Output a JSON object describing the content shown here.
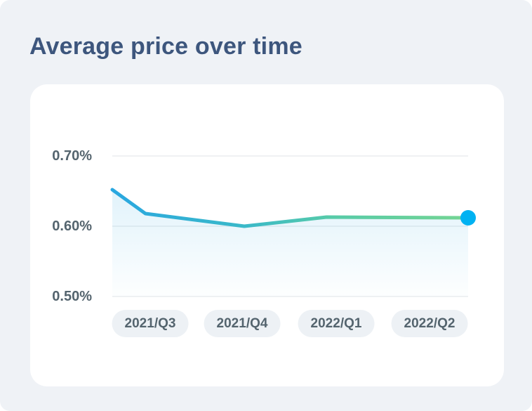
{
  "title": "Average price over time",
  "chart_data": {
    "type": "line",
    "title": "Average price over time",
    "series_name": "Average price",
    "categories": [
      "2021/Q3",
      "2021/Q4",
      "2022/Q1",
      "2022/Q2"
    ],
    "values": [
      0.65,
      0.6,
      0.61,
      0.61
    ],
    "points": [
      {
        "f": 0.0,
        "v": 0.652
      },
      {
        "f": 0.093,
        "v": 0.618
      },
      {
        "f": 0.371,
        "v": 0.6
      },
      {
        "f": 0.602,
        "v": 0.613
      },
      {
        "f": 1.0,
        "v": 0.612
      }
    ],
    "ytick_labels": [
      "0.70%",
      "0.60%",
      "0.50%"
    ],
    "yticks": [
      0.7,
      0.6,
      0.5
    ],
    "ylim": [
      0.5,
      0.7
    ],
    "unit": "%",
    "xlabel": "",
    "ylabel": "",
    "grid": "horizontal",
    "legend": "none",
    "colors": {
      "line_start": "#29a7e0",
      "line_mid": "#3ab9c9",
      "line_mid2": "#57cba8",
      "line_end": "#74d593",
      "end_dot": "#00b2f2",
      "area_top": "#29a7e0",
      "gridline": "#eff1f3"
    }
  },
  "colors": {
    "page_background": "#eff2f6",
    "card_background": "#ffffff",
    "title_text": "#3d567d",
    "axis_text": "#54646e",
    "pill_background": "#edf1f5",
    "pill_text": "#54646e"
  }
}
